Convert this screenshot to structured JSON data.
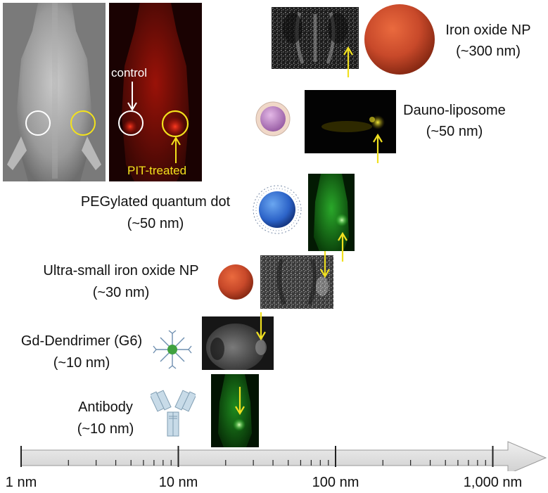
{
  "top_left_inset": {
    "control_label": "control",
    "treated_label": "PIT-treated",
    "ring_colors": {
      "control": "#ffffff",
      "treated": "#f3e21c"
    }
  },
  "agents": [
    {
      "key": "iron_oxide",
      "name": "Iron oxide NP",
      "size": "(~300 nm)",
      "icon": "large-red-sphere-icon"
    },
    {
      "key": "dauno",
      "name": "Dauno-liposome",
      "size": "(~50 nm)",
      "icon": "liposome-icon"
    },
    {
      "key": "qdot",
      "name": "PEGylated quantum dot",
      "size": "(~50 nm)",
      "icon": "quantum-dot-icon"
    },
    {
      "key": "usio",
      "name": "Ultra-small iron oxide NP",
      "size": "(~30 nm)",
      "icon": "small-red-sphere-icon"
    },
    {
      "key": "dendrimer",
      "name": "Gd-Dendrimer (G6)",
      "size": "(~10 nm)",
      "icon": "dendrimer-icon"
    },
    {
      "key": "antibody",
      "name": "Antibody",
      "size": "(~10 nm)",
      "icon": "antibody-icon"
    }
  ],
  "axis": {
    "scale": "log",
    "ticks": [
      "1 nm",
      "10 nm",
      "100 nm",
      "1,000 nm"
    ],
    "arrow_color": "#d9d9d9"
  },
  "colors": {
    "arrow_marker": "#f0e020",
    "fluorescence_green": "#22c21e",
    "fluorescence_red": "#d11a10",
    "sphere_red": "#c8492a"
  }
}
